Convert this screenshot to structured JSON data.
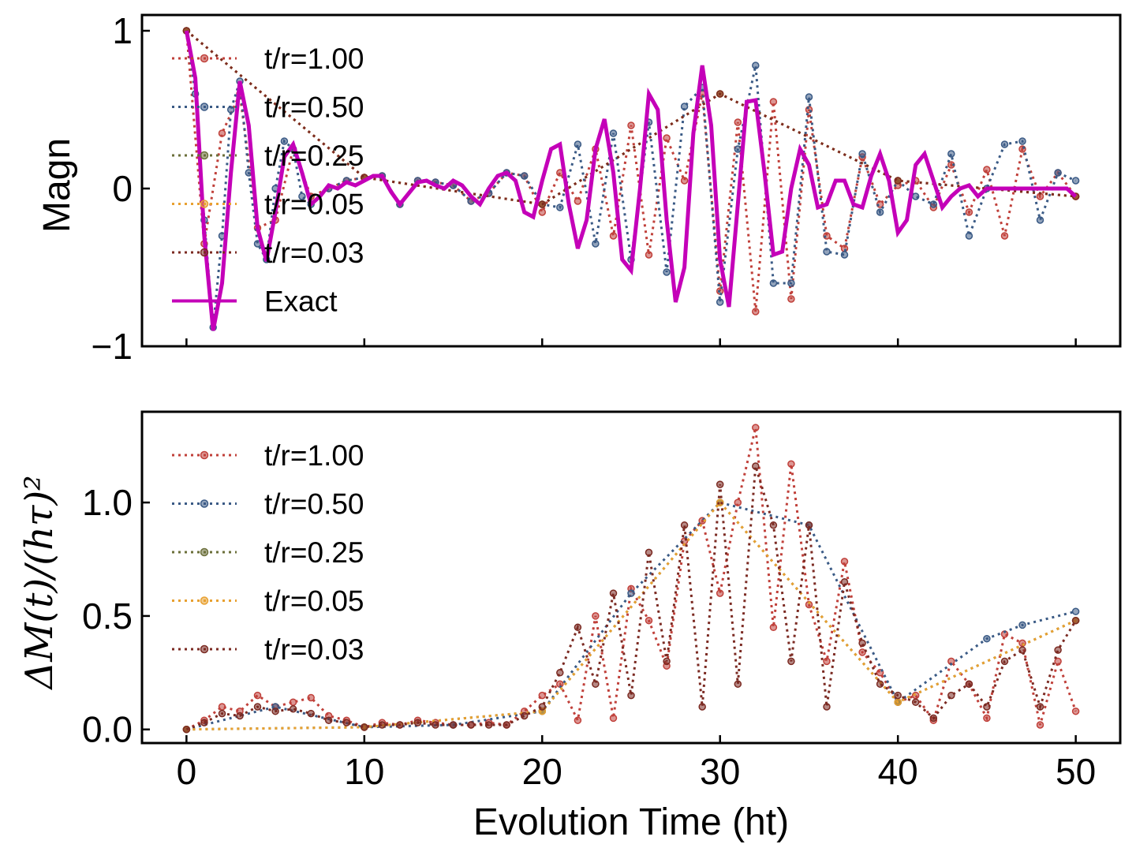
{
  "chart_data": [
    {
      "type": "line",
      "panel": "top",
      "ylabel": "Magn",
      "xlim": [
        -2.5,
        52.5
      ],
      "ylim": [
        -1,
        1.1
      ],
      "yticks": [
        -1,
        0,
        1
      ],
      "ytick_labels": [
        "−1",
        "0",
        "1"
      ],
      "xticks": [
        0,
        10,
        20,
        30,
        40,
        50
      ],
      "show_xtick_labels": false,
      "grid": false,
      "legend_position": "upper-left",
      "series": [
        {
          "name": "t/r=1.00",
          "color": "#c0403a",
          "style": "dotted-markers",
          "x": [
            0,
            1,
            2,
            3,
            4,
            5,
            6,
            7,
            8,
            9,
            10,
            11,
            12,
            13,
            14,
            15,
            16,
            17,
            18,
            19,
            20,
            21,
            22,
            23,
            24,
            25,
            26,
            27,
            28,
            29,
            30,
            31,
            32,
            33,
            34,
            35,
            36,
            37,
            38,
            39,
            40,
            41,
            42,
            43,
            44,
            45,
            46,
            47,
            48,
            49,
            50
          ],
          "values": [
            1,
            -0.35,
            0.35,
            0.6,
            -0.25,
            -0.2,
            0.25,
            -0.05,
            0.0,
            0.05,
            0.07,
            0.08,
            -0.1,
            0.05,
            0.04,
            0.02,
            -0.08,
            -0.03,
            0.1,
            0.08,
            -0.15,
            0.1,
            -0.08,
            0.25,
            -0.3,
            0.4,
            -0.42,
            0.32,
            0.05,
            0.6,
            -0.65,
            0.42,
            -0.78,
            0.55,
            -0.7,
            0.5,
            -0.3,
            -0.38,
            0.2,
            -0.1,
            0.02,
            0.05,
            -0.12,
            0.15,
            -0.15,
            0.12,
            -0.3,
            0.25,
            -0.05,
            0.1,
            -0.05
          ]
        },
        {
          "name": "t/r=0.50",
          "color": "#3a5a85",
          "style": "dotted-markers",
          "x": [
            0,
            0.5,
            1,
            1.5,
            2,
            2.5,
            3,
            3.5,
            4,
            4.5,
            5,
            5.5,
            6,
            6.5,
            7,
            8,
            9,
            10,
            11,
            12,
            13,
            14,
            15,
            16,
            17,
            18,
            19,
            20,
            21,
            22,
            23,
            24,
            25,
            26,
            27,
            28,
            29,
            30,
            31,
            32,
            33,
            34,
            35,
            36,
            37,
            38,
            39,
            40,
            41,
            42,
            43,
            44,
            45,
            46,
            47,
            48,
            49,
            50
          ],
          "values": [
            1,
            0.6,
            -0.2,
            -0.88,
            -0.3,
            0.5,
            0.68,
            0.1,
            -0.35,
            -0.45,
            0.0,
            0.3,
            0.25,
            -0.05,
            -0.1,
            0.0,
            0.05,
            0.07,
            0.08,
            -0.1,
            0.05,
            0.04,
            0.02,
            -0.08,
            -0.03,
            0.1,
            0.08,
            -0.1,
            -0.12,
            0.28,
            -0.35,
            0.35,
            -0.45,
            0.42,
            -0.53,
            0.52,
            0.64,
            -0.72,
            0.25,
            0.78,
            -0.6,
            -0.6,
            0.58,
            -0.4,
            -0.42,
            0.22,
            -0.15,
            0.05,
            -0.05,
            -0.1,
            0.22,
            -0.3,
            0.0,
            0.28,
            0.3,
            -0.2,
            0.1,
            0.05
          ]
        },
        {
          "name": "t/r=0.25",
          "color": "#6b6f3a",
          "style": "dotted-markers",
          "x": [
            0,
            10,
            20,
            30,
            40,
            50
          ],
          "values": [
            1,
            0.07,
            -0.1,
            0.6,
            0.05,
            -0.05
          ]
        },
        {
          "name": "t/r=0.05",
          "color": "#e8a030",
          "style": "dotted-markers",
          "x": [
            0,
            10,
            20,
            30,
            40,
            50
          ],
          "values": [
            1,
            0.07,
            -0.1,
            0.6,
            0.05,
            -0.05
          ]
        },
        {
          "name": "t/r=0.03",
          "color": "#7b2a22",
          "style": "dotted-markers",
          "x": [
            0,
            10,
            20,
            30,
            40,
            50
          ],
          "values": [
            1,
            0.07,
            -0.1,
            0.6,
            0.05,
            -0.05
          ]
        },
        {
          "name": "Exact",
          "color": "#c400b8",
          "style": "solid",
          "x": [
            0,
            0.5,
            1,
            1.5,
            2,
            2.5,
            3,
            3.5,
            4,
            4.5,
            5,
            5.5,
            6,
            6.5,
            7,
            7.5,
            8,
            8.5,
            9,
            9.5,
            10,
            10.5,
            11,
            11.5,
            12,
            12.5,
            13,
            13.5,
            14,
            14.5,
            15,
            15.5,
            16,
            16.5,
            17,
            17.5,
            18,
            18.5,
            19,
            19.5,
            20,
            20.5,
            21,
            21.5,
            22,
            22.5,
            23,
            23.5,
            24,
            24.5,
            25,
            25.5,
            26,
            26.5,
            27,
            27.5,
            28,
            28.5,
            29,
            29.5,
            30,
            30.5,
            31,
            31.5,
            32,
            32.5,
            33,
            33.5,
            34,
            34.5,
            35,
            35.5,
            36,
            36.5,
            37,
            37.5,
            38,
            38.5,
            39,
            39.5,
            40,
            40.5,
            41,
            41.5,
            42,
            42.5,
            43,
            43.5,
            44,
            44.5,
            45,
            45.5,
            46,
            46.5,
            47,
            47.5,
            48,
            48.5,
            49,
            49.5,
            50
          ],
          "values": [
            1.0,
            0.7,
            -0.3,
            -0.9,
            -0.6,
            0.1,
            0.68,
            0.4,
            -0.25,
            -0.46,
            -0.15,
            0.2,
            0.28,
            0.1,
            -0.1,
            -0.05,
            0.02,
            0.0,
            0.04,
            0.02,
            0.05,
            0.08,
            0.08,
            -0.02,
            -0.1,
            -0.03,
            0.04,
            0.05,
            0.02,
            0.0,
            0.05,
            0.02,
            -0.05,
            -0.1,
            0.0,
            0.08,
            0.1,
            0.05,
            -0.15,
            -0.18,
            0.05,
            0.25,
            0.28,
            -0.1,
            -0.38,
            -0.2,
            0.25,
            0.44,
            0.1,
            -0.45,
            -0.52,
            0.0,
            0.6,
            0.5,
            -0.2,
            -0.72,
            -0.5,
            0.35,
            0.78,
            0.4,
            -0.45,
            -0.75,
            -0.1,
            0.55,
            0.56,
            0.1,
            -0.42,
            -0.4,
            0.0,
            0.25,
            0.15,
            -0.12,
            -0.1,
            0.05,
            0.05,
            -0.1,
            -0.12,
            0.08,
            0.22,
            0.05,
            -0.28,
            -0.2,
            0.15,
            0.22,
            0.05,
            -0.12,
            -0.05,
            0.0,
            0.02,
            -0.05,
            0.0,
            0.0,
            0.0,
            0.0,
            0.0,
            0.0,
            0.0,
            0.0,
            0.0,
            0.0,
            -0.05
          ]
        }
      ]
    },
    {
      "type": "line",
      "panel": "bottom",
      "ylabel": "ΔM(t)/(hτ)²",
      "xlabel": "Evolution Time (ht)",
      "xlim": [
        -2.5,
        52.5
      ],
      "ylim": [
        -0.06,
        1.4
      ],
      "yticks": [
        0.0,
        0.5,
        1.0
      ],
      "ytick_labels": [
        "0.0",
        "0.5",
        "1.0"
      ],
      "xticks": [
        0,
        10,
        20,
        30,
        40,
        50
      ],
      "xtick_labels": [
        "0",
        "10",
        "20",
        "30",
        "40",
        "50"
      ],
      "grid": false,
      "legend_position": "upper-left",
      "series": [
        {
          "name": "t/r=1.00",
          "color": "#c0403a",
          "style": "dotted-markers",
          "x": [
            0,
            1,
            2,
            3,
            4,
            5,
            6,
            7,
            8,
            9,
            10,
            11,
            12,
            13,
            14,
            15,
            16,
            17,
            18,
            19,
            20,
            21,
            22,
            23,
            24,
            25,
            26,
            27,
            28,
            29,
            30,
            31,
            32,
            33,
            34,
            35,
            36,
            37,
            38,
            39,
            40,
            41,
            42,
            43,
            44,
            45,
            46,
            47,
            48,
            49,
            50
          ],
          "values": [
            0.0,
            0.04,
            0.1,
            0.08,
            0.15,
            0.1,
            0.12,
            0.14,
            0.06,
            0.04,
            0.01,
            0.03,
            0.02,
            0.04,
            0.03,
            0.02,
            0.02,
            0.03,
            0.02,
            0.08,
            0.15,
            0.2,
            0.04,
            0.5,
            0.05,
            0.62,
            0.48,
            0.28,
            0.83,
            0.92,
            0.6,
            1.0,
            1.33,
            0.45,
            1.17,
            0.55,
            0.3,
            0.74,
            0.34,
            0.25,
            0.12,
            0.15,
            0.04,
            0.3,
            0.2,
            0.05,
            0.42,
            0.38,
            0.02,
            0.3,
            0.08
          ]
        },
        {
          "name": "t/r=0.50",
          "color": "#3a5a85",
          "style": "dotted-markers",
          "x": [
            0,
            5,
            10,
            15,
            20,
            25,
            30,
            35,
            40,
            45,
            47,
            50
          ],
          "values": [
            0.0,
            0.1,
            0.01,
            0.02,
            0.08,
            0.6,
            1.0,
            0.9,
            0.12,
            0.4,
            0.46,
            0.52
          ]
        },
        {
          "name": "t/r=0.25",
          "color": "#6b6f3a",
          "style": "dotted-markers",
          "x": [
            0,
            10,
            20,
            30,
            40,
            50
          ],
          "values": [
            0.0,
            0.01,
            0.08,
            1.0,
            0.12,
            0.48
          ]
        },
        {
          "name": "t/r=0.05",
          "color": "#e8a030",
          "style": "dotted-markers",
          "x": [
            0,
            10,
            20,
            30,
            40,
            50
          ],
          "values": [
            0.0,
            0.01,
            0.08,
            1.0,
            0.12,
            0.48
          ]
        },
        {
          "name": "t/r=0.03",
          "color": "#7b2a22",
          "style": "dotted-markers",
          "x": [
            0,
            1,
            2,
            3,
            4,
            5,
            6,
            7,
            8,
            9,
            10,
            11,
            12,
            13,
            14,
            15,
            16,
            17,
            18,
            19,
            20,
            21,
            22,
            23,
            24,
            25,
            26,
            27,
            28,
            29,
            30,
            31,
            32,
            33,
            34,
            35,
            36,
            37,
            38,
            39,
            40,
            41,
            42,
            43,
            44,
            45,
            46,
            47,
            48,
            49,
            50
          ],
          "values": [
            0.0,
            0.03,
            0.07,
            0.06,
            0.1,
            0.08,
            0.09,
            0.07,
            0.04,
            0.03,
            0.01,
            0.02,
            0.02,
            0.03,
            0.02,
            0.02,
            0.02,
            0.02,
            0.02,
            0.06,
            0.1,
            0.25,
            0.45,
            0.2,
            0.6,
            0.15,
            0.78,
            0.3,
            0.9,
            0.1,
            1.08,
            0.2,
            1.16,
            0.9,
            0.3,
            0.9,
            0.1,
            0.65,
            0.38,
            0.2,
            0.15,
            0.12,
            0.05,
            0.15,
            0.2,
            0.1,
            0.3,
            0.35,
            0.1,
            0.35,
            0.48
          ]
        }
      ]
    }
  ]
}
